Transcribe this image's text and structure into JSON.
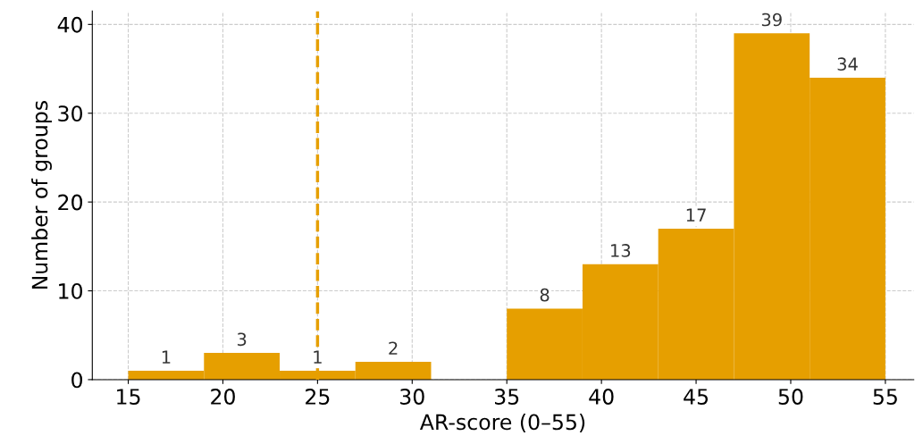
{
  "chart_data": {
    "type": "histogram",
    "xlabel": "AR-score (0–55)",
    "ylabel": "Number of groups",
    "bins": [
      15,
      19,
      23,
      27,
      31,
      35,
      39,
      43,
      47,
      51,
      55
    ],
    "values": [
      1,
      3,
      1,
      2,
      0,
      8,
      13,
      17,
      39,
      34
    ],
    "value_labels": [
      "1",
      "3",
      "1",
      "2",
      null,
      "8",
      "13",
      "17",
      "39",
      "34"
    ],
    "color": "#e69f00",
    "xlim": [
      13.1,
      56.5
    ],
    "xticks": [
      15,
      20,
      25,
      30,
      35,
      40,
      45,
      50,
      55
    ],
    "ylim": [
      0,
      41.5
    ],
    "yticks": [
      0,
      10,
      20,
      30,
      40
    ],
    "grid": true,
    "ref_lines": [
      {
        "axis": "x",
        "value": 25,
        "color": "#e69f00",
        "line_style": "dashed"
      }
    ]
  }
}
